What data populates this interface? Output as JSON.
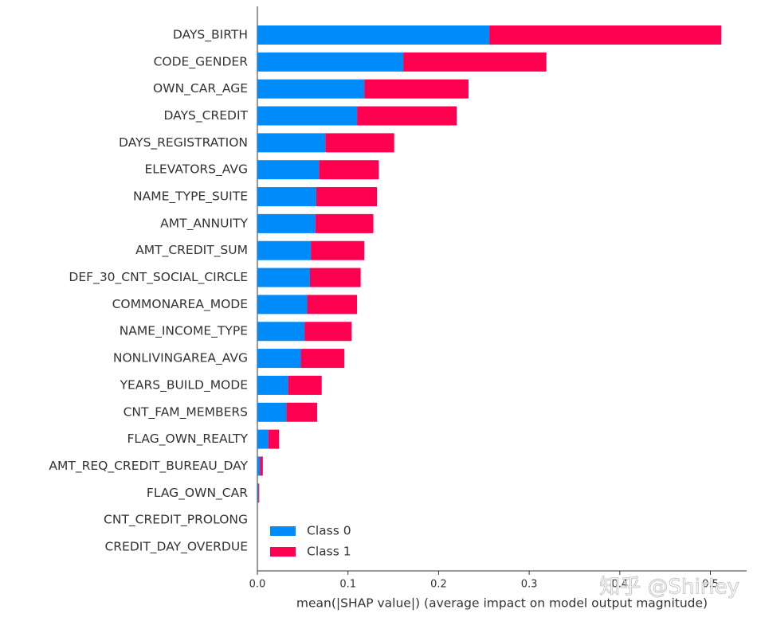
{
  "chart_data": {
    "type": "stacked-bar-horizontal",
    "xlabel": "mean(|SHAP value|) (average impact on model output magnitude)",
    "categories": [
      "DAYS_BIRTH",
      "CODE_GENDER",
      "OWN_CAR_AGE",
      "DAYS_CREDIT",
      "DAYS_REGISTRATION",
      "ELEVATORS_AVG",
      "NAME_TYPE_SUITE",
      "AMT_ANNUITY",
      "AMT_CREDIT_SUM",
      "DEF_30_CNT_SOCIAL_CIRCLE",
      "COMMONAREA_MODE",
      "NAME_INCOME_TYPE",
      "NONLIVINGAREA_AVG",
      "YEARS_BUILD_MODE",
      "CNT_FAM_MEMBERS",
      "FLAG_OWN_REALTY",
      "AMT_REQ_CREDIT_BUREAU_DAY",
      "FLAG_OWN_CAR",
      "CNT_CREDIT_PROLONG",
      "CREDIT_DAY_OVERDUE"
    ],
    "series": [
      {
        "name": "Class 0",
        "color": "#008bfb",
        "values": [
          0.256,
          0.161,
          0.118,
          0.11,
          0.075,
          0.068,
          0.065,
          0.064,
          0.059,
          0.058,
          0.055,
          0.052,
          0.048,
          0.034,
          0.032,
          0.012,
          0.003,
          0.001,
          0,
          0
        ]
      },
      {
        "name": "Class 1",
        "color": "#ff0051",
        "values": [
          0.256,
          0.158,
          0.115,
          0.11,
          0.076,
          0.066,
          0.067,
          0.064,
          0.059,
          0.056,
          0.055,
          0.052,
          0.048,
          0.037,
          0.034,
          0.012,
          0.003,
          0.001,
          0,
          0
        ]
      }
    ],
    "xlim": [
      0,
      0.54
    ],
    "xticks": [
      {
        "value": 0,
        "label": "0.0"
      },
      0.1,
      0.2,
      0.3,
      0.4,
      0.5
    ],
    "legend": "lower-left",
    "watermark": "知乎 @Shirley"
  }
}
